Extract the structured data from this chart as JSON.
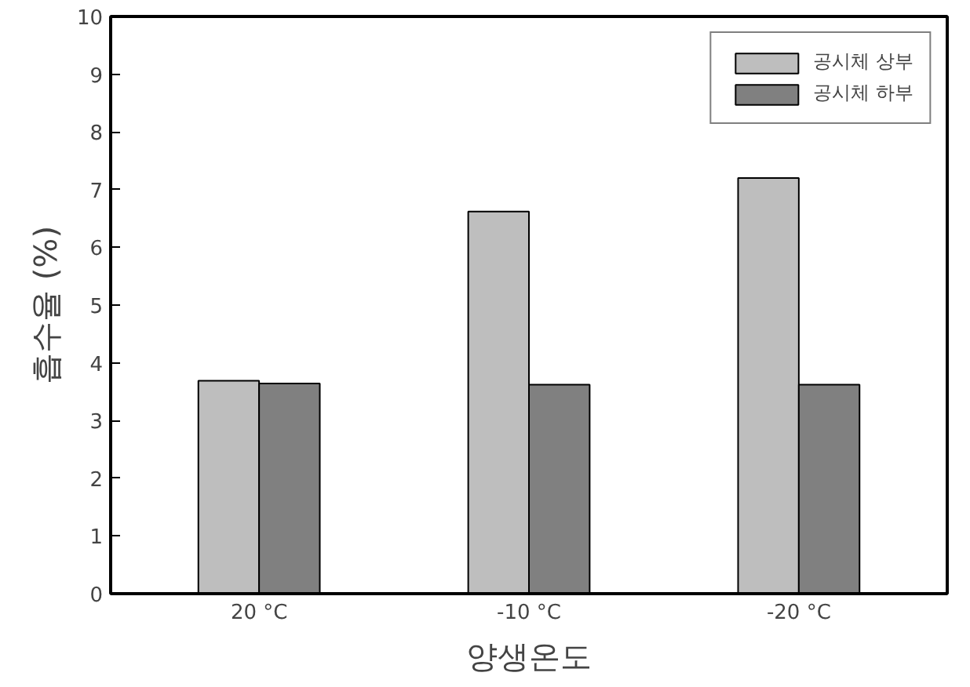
{
  "chart_data": {
    "type": "bar",
    "xlabel": "양생온도",
    "ylabel": "흡수율 (%)",
    "categories": [
      "20 °C",
      "-10 °C",
      "-20 °C"
    ],
    "series": [
      {
        "name": "공시체 상부",
        "color": "#bebebe",
        "values": [
          3.69,
          6.62,
          7.2
        ]
      },
      {
        "name": "공시체 하부",
        "color": "#808080",
        "values": [
          3.64,
          3.62,
          3.62
        ]
      }
    ],
    "ylim": [
      0,
      10
    ],
    "yticks": [
      0,
      1,
      2,
      3,
      4,
      5,
      6,
      7,
      8,
      9,
      10
    ],
    "grid": false,
    "legend": "top right"
  }
}
